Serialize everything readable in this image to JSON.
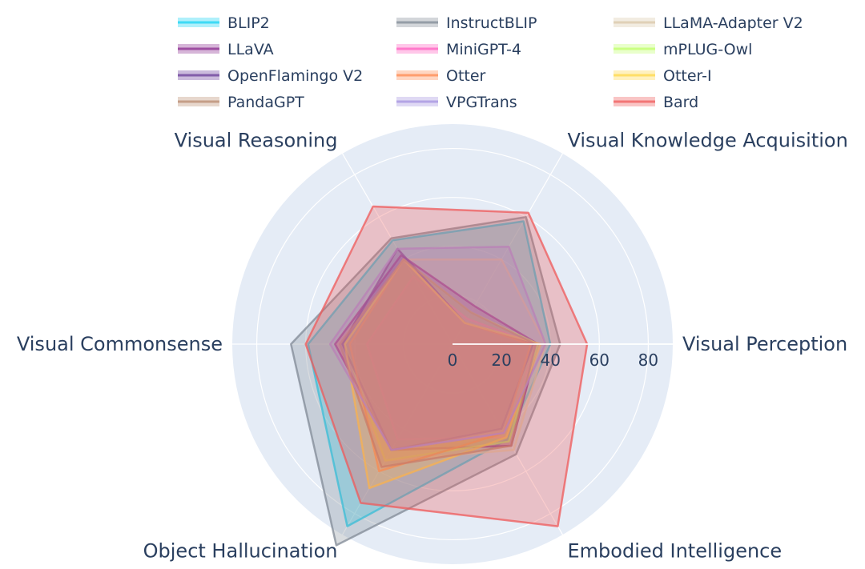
{
  "chart_data": {
    "type": "radar",
    "axes": [
      "Visual Perception",
      "Visual Knowledge Acquisition",
      "Visual Reasoning",
      "Visual Commonsense",
      "Object Hallucination",
      "Embodied Intelligence"
    ],
    "radial_range": [
      0,
      90
    ],
    "radial_ticks": [
      "0",
      "20",
      "40",
      "60",
      "80"
    ],
    "grid": true,
    "legend": "top",
    "series": [
      {
        "name": "BLIP2",
        "color": "#19d3f3",
        "values": [
          40,
          58,
          49,
          59,
          86,
          45
        ]
      },
      {
        "name": "InstructBLIP",
        "color": "#808a96",
        "values": [
          44,
          60,
          50,
          66,
          95,
          52
        ]
      },
      {
        "name": "LLaMA-Adapter V2",
        "color": "#d9c8a8",
        "values": [
          38,
          40,
          40,
          47,
          55,
          50
        ]
      },
      {
        "name": "LLaVA",
        "color": "#8a2b8f",
        "values": [
          35,
          18,
          42,
          48,
          50,
          48
        ]
      },
      {
        "name": "MiniGPT-4",
        "color": "#ff5fc0",
        "values": [
          34,
          12,
          32,
          35,
          45,
          44
        ]
      },
      {
        "name": "mPLUG-Owl",
        "color": "#bfff6a",
        "values": [
          35,
          15,
          40,
          44,
          55,
          46
        ]
      },
      {
        "name": "OpenFlamingo V2",
        "color": "#6a3d9a",
        "values": [
          33,
          10,
          45,
          45,
          50,
          40
        ]
      },
      {
        "name": "Otter",
        "color": "#ff8a50",
        "values": [
          32,
          10,
          40,
          42,
          60,
          42
        ]
      },
      {
        "name": "Otter-I",
        "color": "#ffd84a",
        "values": [
          36,
          10,
          40,
          44,
          68,
          44
        ]
      },
      {
        "name": "PandaGPT",
        "color": "#b98b70",
        "values": [
          34,
          15,
          40,
          46,
          58,
          48
        ]
      },
      {
        "name": "VPGTrans",
        "color": "#a491e0",
        "values": [
          38,
          46,
          45,
          50,
          50,
          42
        ]
      },
      {
        "name": "Bard",
        "color": "#ef5a5a",
        "values": [
          55,
          62,
          65,
          60,
          75,
          86
        ]
      }
    ]
  }
}
